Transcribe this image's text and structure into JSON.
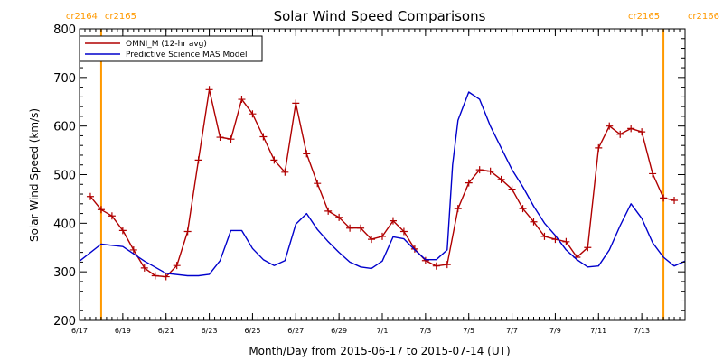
{
  "chart_data": {
    "type": "line",
    "title": "Solar Wind Speed Comparisons",
    "xlabel": "Month/Day from 2015-06-17 to 2015-07-14 (UT)",
    "ylabel": "Solar Wind Speed (km/s)",
    "ylim": [
      200,
      800
    ],
    "xlim": [
      "2015-06-17",
      "2015-07-15"
    ],
    "grid": false,
    "legend_position": "top-left",
    "x_ticks": [
      "6/17",
      "6/19",
      "6/21",
      "6/23",
      "6/25",
      "6/27",
      "6/29",
      "7/1",
      "7/3",
      "7/5",
      "7/7",
      "7/9",
      "7/11",
      "7/13"
    ],
    "y_ticks": [
      200,
      300,
      400,
      500,
      600,
      700,
      800
    ],
    "carrington_markers": [
      {
        "date": "2015-06-18",
        "left_label": "cr2164",
        "right_label": "cr2165"
      },
      {
        "date": "2015-07-14",
        "left_label": "cr2165",
        "right_label": "cr2166"
      }
    ],
    "colors": {
      "omni": "#b00000",
      "model": "#0000cc",
      "marker": "#ff9900",
      "axis": "#000000"
    },
    "series": [
      {
        "name": "OMNI_M (12-hr avg)",
        "marker": "plus",
        "x": [
          "2015-06-17 12:00",
          "2015-06-18 00:00",
          "2015-06-18 12:00",
          "2015-06-19 00:00",
          "2015-06-19 12:00",
          "2015-06-20 00:00",
          "2015-06-20 12:00",
          "2015-06-21 00:00",
          "2015-06-21 12:00",
          "2015-06-22 00:00",
          "2015-06-22 12:00",
          "2015-06-23 00:00",
          "2015-06-23 12:00",
          "2015-06-24 00:00",
          "2015-06-24 12:00",
          "2015-06-25 00:00",
          "2015-06-25 12:00",
          "2015-06-26 00:00",
          "2015-06-26 12:00",
          "2015-06-27 00:00",
          "2015-06-27 12:00",
          "2015-06-28 00:00",
          "2015-06-28 12:00",
          "2015-06-29 00:00",
          "2015-06-29 12:00",
          "2015-06-30 00:00",
          "2015-06-30 12:00",
          "2015-07-01 00:00",
          "2015-07-01 12:00",
          "2015-07-02 00:00",
          "2015-07-02 12:00",
          "2015-07-03 00:00",
          "2015-07-03 12:00",
          "2015-07-04 00:00",
          "2015-07-04 12:00",
          "2015-07-05 00:00",
          "2015-07-05 12:00",
          "2015-07-06 00:00",
          "2015-07-06 12:00",
          "2015-07-07 00:00",
          "2015-07-07 12:00",
          "2015-07-08 00:00",
          "2015-07-08 12:00",
          "2015-07-09 00:00",
          "2015-07-09 12:00",
          "2015-07-10 00:00",
          "2015-07-10 12:00",
          "2015-07-11 00:00",
          "2015-07-11 12:00",
          "2015-07-12 00:00",
          "2015-07-12 12:00",
          "2015-07-13 00:00",
          "2015-07-13 12:00",
          "2015-07-14 00:00",
          "2015-07-14 12:00"
        ],
        "values": [
          455,
          428,
          415,
          385,
          345,
          308,
          292,
          290,
          313,
          383,
          530,
          675,
          577,
          573,
          655,
          625,
          578,
          530,
          505,
          647,
          543,
          482,
          425,
          412,
          390,
          390,
          367,
          373,
          405,
          383,
          347,
          323,
          312,
          315,
          430,
          483,
          510,
          507,
          490,
          470,
          430,
          403,
          373,
          367,
          362,
          330,
          350,
          555,
          600,
          583,
          595,
          588,
          502,
          452,
          447
        ]
      },
      {
        "name": "Predictive Science MAS Model",
        "x": [
          "2015-06-17 00:00",
          "2015-06-18 00:00",
          "2015-06-19 00:00",
          "2015-06-20 00:00",
          "2015-06-21 00:00",
          "2015-06-22 00:00",
          "2015-06-22 12:00",
          "2015-06-23 00:00",
          "2015-06-23 12:00",
          "2015-06-24 00:00",
          "2015-06-24 12:00",
          "2015-06-25 00:00",
          "2015-06-25 12:00",
          "2015-06-26 00:00",
          "2015-06-26 12:00",
          "2015-06-27 00:00",
          "2015-06-27 12:00",
          "2015-06-28 00:00",
          "2015-06-28 12:00",
          "2015-06-29 00:00",
          "2015-06-29 12:00",
          "2015-06-30 00:00",
          "2015-06-30 12:00",
          "2015-07-01 00:00",
          "2015-07-01 12:00",
          "2015-07-02 00:00",
          "2015-07-02 12:00",
          "2015-07-03 00:00",
          "2015-07-03 12:00",
          "2015-07-04 00:00",
          "2015-07-04 06:00",
          "2015-07-04 12:00",
          "2015-07-05 00:00",
          "2015-07-05 12:00",
          "2015-07-06 00:00",
          "2015-07-06 12:00",
          "2015-07-07 00:00",
          "2015-07-07 12:00",
          "2015-07-08 00:00",
          "2015-07-08 12:00",
          "2015-07-09 00:00",
          "2015-07-09 12:00",
          "2015-07-10 00:00",
          "2015-07-10 12:00",
          "2015-07-11 00:00",
          "2015-07-11 12:00",
          "2015-07-12 00:00",
          "2015-07-12 12:00",
          "2015-07-13 00:00",
          "2015-07-13 12:00",
          "2015-07-14 00:00",
          "2015-07-14 12:00",
          "2015-07-15 00:00"
        ],
        "values": [
          322,
          357,
          352,
          322,
          297,
          292,
          292,
          295,
          323,
          385,
          385,
          348,
          325,
          313,
          323,
          398,
          420,
          387,
          362,
          340,
          320,
          310,
          307,
          322,
          372,
          368,
          345,
          325,
          325,
          345,
          520,
          612,
          670,
          655,
          600,
          555,
          510,
          475,
          435,
          400,
          375,
          345,
          325,
          310,
          312,
          345,
          395,
          440,
          410,
          360,
          330,
          312,
          322
        ]
      }
    ]
  }
}
